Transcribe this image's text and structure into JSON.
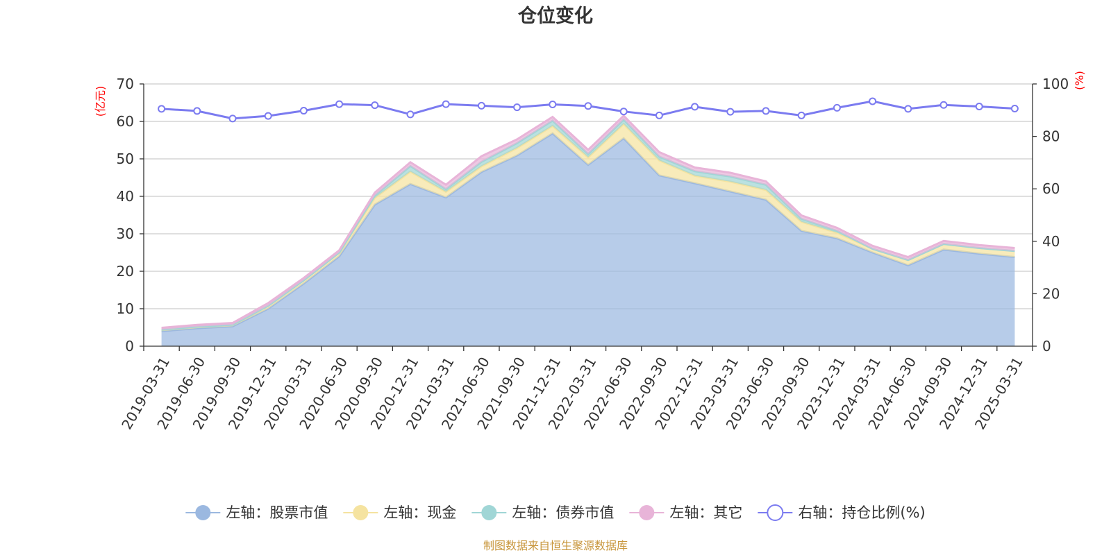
{
  "chart_data": {
    "type": "area",
    "title": "仓位变化",
    "left_axis_unit": "(亿元)",
    "right_axis_unit": "(%)",
    "left_ylim": [
      0,
      70
    ],
    "left_ticks": [
      0,
      10,
      20,
      30,
      40,
      50,
      60,
      70
    ],
    "right_ylim": [
      0,
      100
    ],
    "right_ticks": [
      0,
      20,
      40,
      60,
      80,
      100
    ],
    "grid": true,
    "stacked": true,
    "legend_position": "bottom",
    "categories": [
      "2019-03-31",
      "2019-06-30",
      "2019-09-30",
      "2019-12-31",
      "2020-03-31",
      "2020-06-30",
      "2020-09-30",
      "2020-12-31",
      "2021-03-31",
      "2021-06-30",
      "2021-09-30",
      "2021-12-31",
      "2022-03-31",
      "2022-06-30",
      "2022-09-30",
      "2022-12-31",
      "2023-03-31",
      "2023-06-30",
      "2023-09-30",
      "2023-12-31",
      "2024-03-31",
      "2024-06-30",
      "2024-09-30",
      "2024-12-31",
      "2025-03-31"
    ],
    "series": [
      {
        "name": "左轴：股票市值",
        "axis": "left",
        "kind": "area",
        "color": "#9bb8e0",
        "values": [
          4.0,
          4.8,
          5.3,
          10.0,
          16.7,
          24.0,
          37.8,
          43.3,
          39.7,
          46.5,
          50.9,
          56.8,
          48.4,
          55.5,
          45.6,
          43.5,
          41.3,
          39.1,
          30.8,
          28.8,
          25.0,
          21.6,
          25.8,
          24.7,
          23.8
        ]
      },
      {
        "name": "左轴：现金",
        "axis": "left",
        "kind": "area",
        "color": "#f5e3a0",
        "values": [
          0.4,
          0.4,
          0.4,
          0.8,
          0.9,
          1.0,
          1.8,
          3.3,
          1.5,
          1.5,
          2.0,
          2.0,
          2.0,
          3.8,
          4.0,
          2.0,
          2.6,
          2.6,
          2.4,
          1.5,
          1.0,
          1.4,
          1.5,
          1.5,
          1.6
        ]
      },
      {
        "name": "左轴：债券市值",
        "axis": "left",
        "kind": "area",
        "color": "#a0d6d6",
        "values": [
          0.0,
          0.0,
          0.0,
          0.0,
          0.0,
          0.0,
          0.6,
          1.5,
          0.7,
          1.2,
          1.3,
          1.4,
          0.9,
          1.2,
          1.0,
          1.2,
          1.4,
          1.4,
          0.8,
          0.5,
          0.0,
          0.0,
          0.0,
          0.0,
          0.0
        ]
      },
      {
        "name": "左轴：其它",
        "axis": "left",
        "kind": "area",
        "color": "#e8b4d8",
        "values": [
          0.5,
          0.5,
          0.5,
          0.7,
          0.6,
          0.6,
          0.8,
          1.0,
          1.2,
          1.5,
          1.0,
          1.0,
          1.1,
          1.0,
          1.2,
          1.0,
          1.0,
          0.9,
          0.9,
          0.8,
          0.8,
          0.8,
          0.8,
          0.8,
          0.8
        ]
      },
      {
        "name": "右轴：持仓比例(%)",
        "axis": "right",
        "kind": "line",
        "color": "#7b7bf0",
        "values": [
          90.5,
          89.7,
          86.8,
          87.8,
          89.8,
          92.3,
          91.9,
          88.4,
          92.3,
          91.7,
          91.1,
          92.2,
          91.6,
          89.5,
          88.0,
          91.3,
          89.4,
          89.7,
          88.0,
          90.9,
          93.4,
          90.5,
          92.0,
          91.4,
          90.6
        ]
      }
    ]
  },
  "source_note": "制图数据来自恒生聚源数据库"
}
